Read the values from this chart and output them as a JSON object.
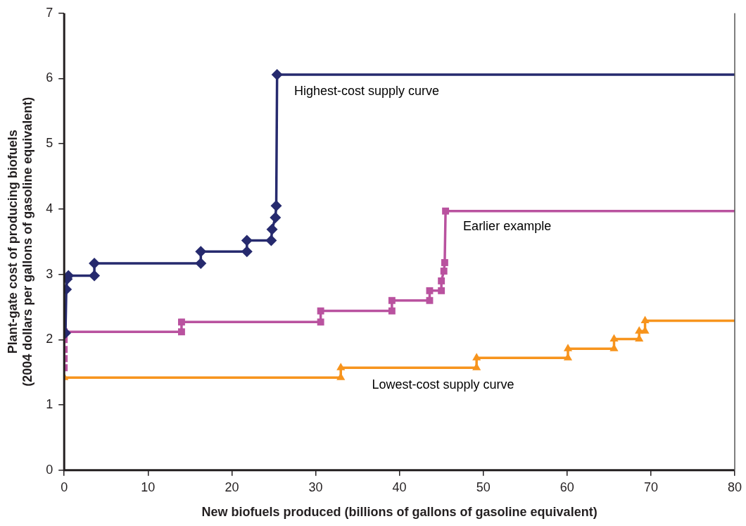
{
  "chart_data": {
    "type": "line",
    "xlabel": "New biofuels produced (billions of gallons of gasoline equivalent)",
    "ylabel": "Plant-gate cost of producing biofuels\n(2004 dollars per gallons of gasoline equivalent)",
    "xlim": [
      0,
      80
    ],
    "xticks": [
      0,
      10,
      20,
      30,
      40,
      50,
      60,
      70,
      80
    ],
    "ylim": [
      0,
      7
    ],
    "yticks": [
      0,
      1,
      2,
      3,
      4,
      5,
      6,
      7
    ],
    "grid": false,
    "legend": false,
    "series": [
      {
        "name": "Highest-cost supply curve",
        "color": "#262a6e",
        "marker": "diamond",
        "x": [
          0.15,
          0.25,
          0.35,
          0.5,
          3.6,
          3.6,
          16.3,
          16.3,
          21.8,
          21.8,
          24.7,
          24.8,
          25.2,
          25.3,
          25.4,
          80
        ],
        "values": [
          2.1,
          2.77,
          2.93,
          2.98,
          2.98,
          3.17,
          3.17,
          3.35,
          3.35,
          3.52,
          3.52,
          3.69,
          3.87,
          4.05,
          6.06,
          6.06
        ]
      },
      {
        "name": "Earlier example",
        "color": "#b9529f",
        "marker": "square",
        "x": [
          0,
          0,
          0,
          0,
          0,
          14,
          14,
          30.6,
          30.6,
          39.1,
          39.1,
          43.6,
          43.6,
          45,
          45,
          45.3,
          45.4,
          45.5,
          80
        ],
        "values": [
          1.57,
          1.71,
          1.85,
          2.0,
          2.12,
          2.12,
          2.27,
          2.27,
          2.44,
          2.44,
          2.6,
          2.6,
          2.75,
          2.75,
          2.9,
          3.05,
          3.18,
          3.97,
          3.97
        ]
      },
      {
        "name": "Lowest-cost supply curve",
        "color": "#f7941d",
        "marker": "triangle",
        "x": [
          0,
          33,
          33,
          49.2,
          49.2,
          60.1,
          60.1,
          65.6,
          65.6,
          68.6,
          68.6,
          69.3,
          69.3,
          80
        ],
        "values": [
          1.42,
          1.42,
          1.57,
          1.57,
          1.72,
          1.72,
          1.86,
          1.86,
          2.01,
          2.01,
          2.13,
          2.13,
          2.29,
          2.29
        ]
      }
    ]
  }
}
